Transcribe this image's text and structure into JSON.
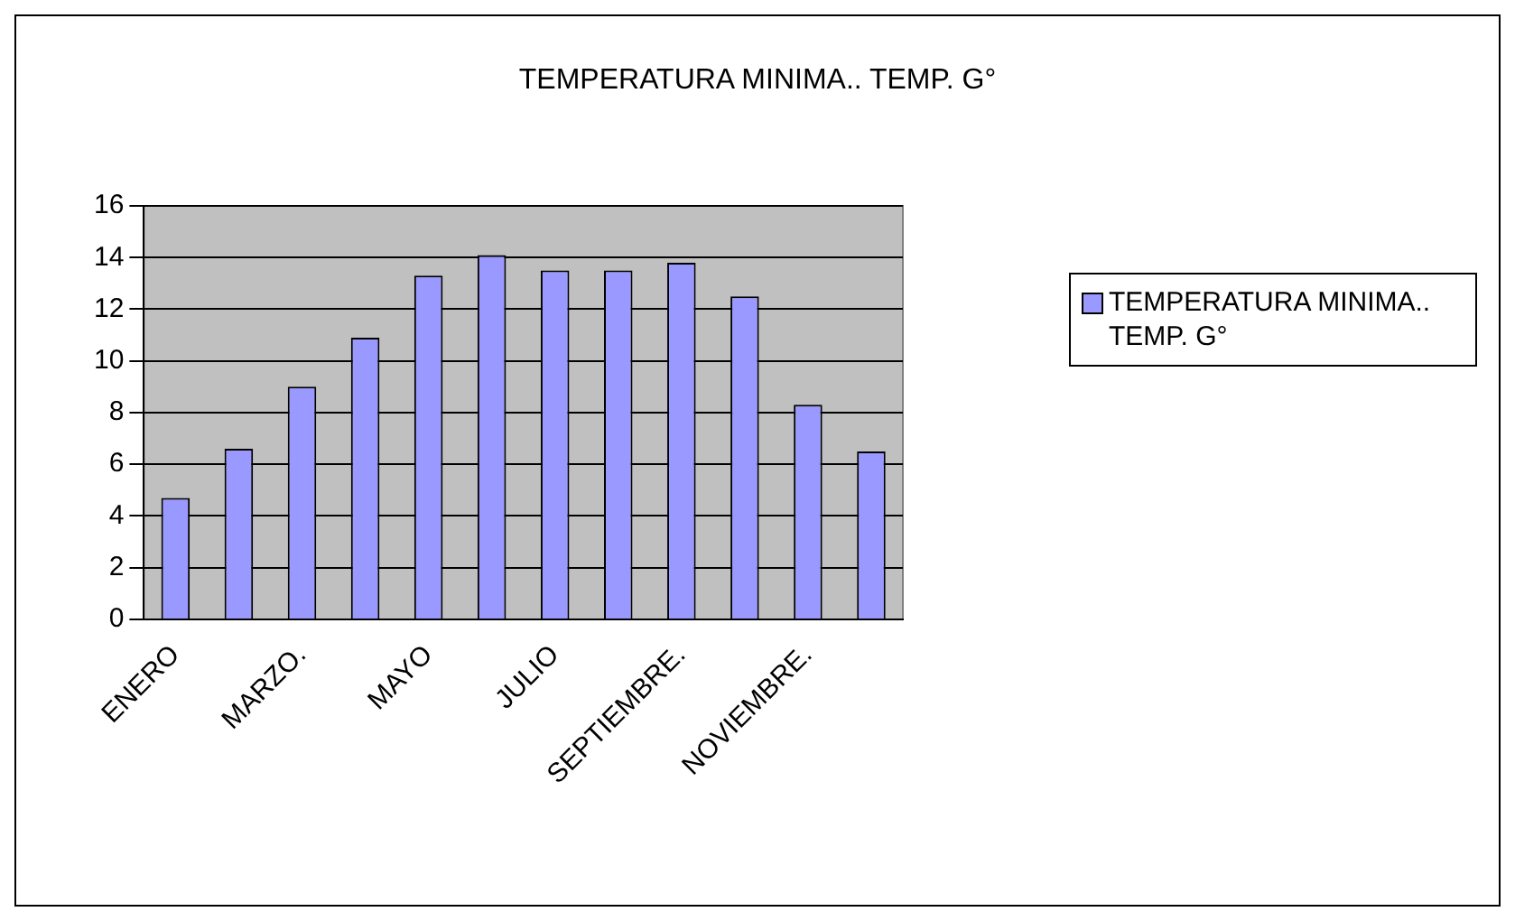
{
  "chart_data": {
    "type": "bar",
    "title": "TEMPERATURA MINIMA.. TEMP. G°",
    "categories": [
      "ENERO",
      null,
      "MARZO.",
      null,
      "MAYO",
      null,
      "JULIO",
      null,
      "SEPTIEMBRE.",
      null,
      "NOVIEMBRE.",
      null
    ],
    "series": [
      {
        "name": "TEMPERATURA MINIMA.. TEMP. G°",
        "color": "#9999ff",
        "values": [
          4.7,
          6.6,
          9.0,
          10.9,
          13.3,
          14.1,
          13.5,
          13.5,
          13.8,
          12.5,
          8.3,
          6.5
        ]
      }
    ],
    "ylim": [
      0,
      16
    ],
    "yticks": [
      0,
      2,
      4,
      6,
      8,
      10,
      12,
      14,
      16
    ],
    "grid": "y",
    "legend": "right"
  }
}
